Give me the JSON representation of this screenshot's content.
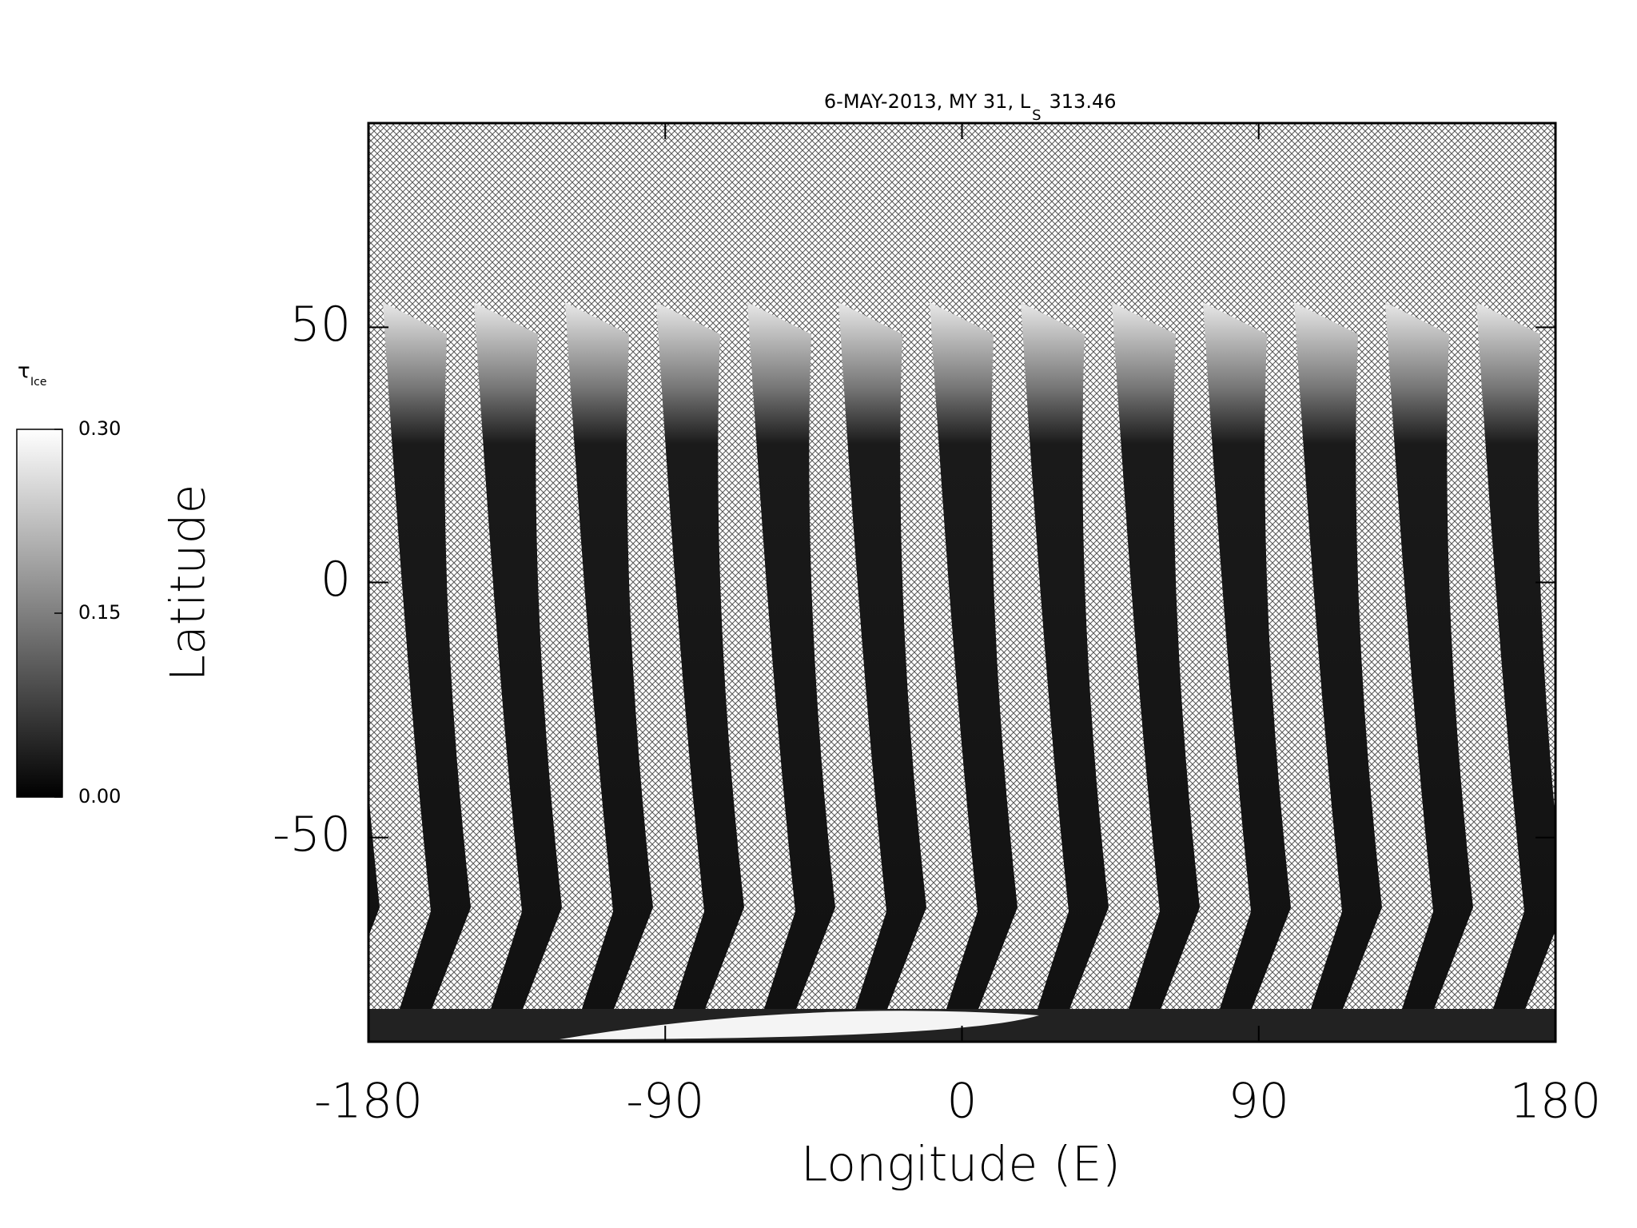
{
  "chart_data": {
    "type": "map",
    "title": "6-MAY-2013, MY 31,  L",
    "title_subscript": "S",
    "title_value": "313.46",
    "xlabel": "Longitude (E)",
    "ylabel": "Latitude",
    "xlim": [
      -180,
      180
    ],
    "xticks": [
      -180,
      -90,
      0,
      90,
      180
    ],
    "ylim": [
      -90,
      90
    ],
    "yticks": [
      -50,
      0,
      50
    ],
    "colorbar": {
      "label": "τ",
      "label_subscript": "Ice",
      "lim": [
        0,
        0.3
      ],
      "ticks": [
        {
          "value": 0,
          "label": "0.00"
        },
        {
          "value": 0.15,
          "label": "0.15"
        },
        {
          "value": 0.3,
          "label": "0.30"
        }
      ],
      "colors": [
        "#000000",
        "#ffffff"
      ]
    }
  }
}
